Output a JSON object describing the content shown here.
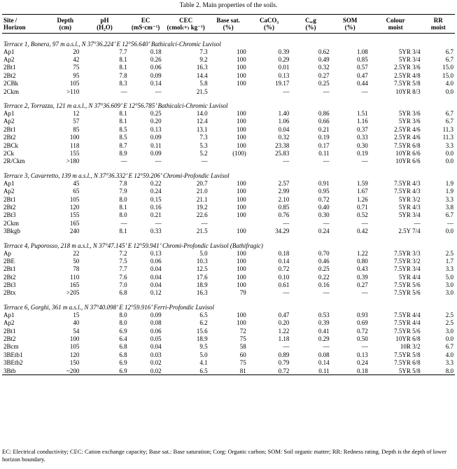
{
  "caption": "Table 2. Main properties of the soils.",
  "headers": {
    "row1": [
      "Site /",
      "Depth",
      "pH",
      "EC",
      "CEC",
      "Base sat.",
      "CaCO₃",
      "Cₒᵣg",
      "SOM",
      "Colour",
      "RR"
    ],
    "row2": [
      "Horizon",
      "(cm)",
      "(H₂O)",
      "(mS·cm⁻¹)",
      "(cmol₍+₎ kg⁻¹)",
      "(%)",
      "(%)",
      "(%)",
      "(%)",
      "moist",
      "moist"
    ]
  },
  "sections": [
    {
      "title": "Terrace 1, Bonera, 97 m a.s.l., N 37°36.224’ E 12°56.640’ Bathicalci-Chromic Luvisol",
      "rows": [
        [
          "Ap1",
          "20",
          "7.7",
          "0.18",
          "7.3",
          "100",
          "0.39",
          "0.62",
          "1.08",
          "5YR 3/4",
          "6.7"
        ],
        [
          "Ap2",
          "42",
          "8.1",
          "0.26",
          "9.2",
          "100",
          "0.29",
          "0.49",
          "0.85",
          "5YR 3/4",
          "6.7"
        ],
        [
          "2Bt1",
          "75",
          "8.1",
          "0.06",
          "16.3",
          "100",
          "0.01",
          "0.32",
          "0.57",
          "2.5YR 3/6",
          "15.0"
        ],
        [
          "2Bt2",
          "95",
          "7.8",
          "0.09",
          "14.4",
          "100",
          "0.13",
          "0.27",
          "0.47",
          "2.5YR 4/8",
          "15.0"
        ],
        [
          "2CBk",
          "105",
          "8.3",
          "0.14",
          "5.8",
          "100",
          "19.17",
          "0.25",
          "0.44",
          "7.5YR 5/8",
          "4.0"
        ],
        [
          "2Ckm",
          ">110",
          "—",
          "—",
          "21.5",
          "",
          "—",
          "—",
          "—",
          "10YR 8/3",
          "0.0"
        ]
      ]
    },
    {
      "title": "Terrace 2, Torrazza, 121 m a.s.l., N 37°36.609’ E 12°56.785’ Bathicalci-Chromic Luvisol",
      "rows": [
        [
          "Ap1",
          "12",
          "8.1",
          "0.25",
          "14.0",
          "100",
          "1.40",
          "0.86",
          "1.51",
          "5YR 3/6",
          "6.7"
        ],
        [
          "Ap2",
          "57",
          "8.1",
          "0.20",
          "12.4",
          "100",
          "1.06",
          "0.66",
          "1.16",
          "5YR 3/6",
          "6.7"
        ],
        [
          "2Bt1",
          "85",
          "8.5",
          "0.13",
          "13.1",
          "100",
          "0.04",
          "0.21",
          "0.37",
          "2.5YR 4/6",
          "11.3"
        ],
        [
          "2Bt2",
          "100",
          "8.5",
          "0.09",
          "7.3",
          "100",
          "0.32",
          "0.19",
          "0.33",
          "2.5YR 4/6",
          "11.3"
        ],
        [
          "2BCk",
          "118",
          "8.7",
          "0.11",
          "5.3",
          "100",
          "23.38",
          "0.17",
          "0.30",
          "7.5YR 6/8",
          "3.3"
        ],
        [
          "2Ck",
          "155",
          "8.9",
          "0.09",
          "5.2",
          "(100)",
          "25.83",
          "0.11",
          "0.19",
          "10YR 6/6",
          "0.0"
        ],
        [
          "2R/Ckm",
          ">180",
          "—",
          "—",
          "—",
          "",
          "—",
          "—",
          "—",
          "10YR 6/6",
          "0.0"
        ]
      ]
    },
    {
      "title": "Terrace 3, Cavarretto, 139 m a.s.l., N 37°36.332’ E 12°59.206’ Chromi-Profondic Luvisol",
      "rows": [
        [
          "Ap1",
          "45",
          "7.8",
          "0.22",
          "20.7",
          "100",
          "2.57",
          "0.91",
          "1.59",
          "7.5YR 4/3",
          "1.9"
        ],
        [
          "Ap2",
          "65",
          "7.9",
          "0.24",
          "21.0",
          "100",
          "2.99",
          "0.95",
          "1.67",
          "7.5YR 4/3",
          "1.9"
        ],
        [
          "2Bt1",
          "105",
          "8.0",
          "0.15",
          "21.1",
          "100",
          "2.10",
          "0.72",
          "1.26",
          "5YR 3/2",
          "3.3"
        ],
        [
          "2Bt2",
          "120",
          "8.1",
          "0.16",
          "19.2",
          "100",
          "0.85",
          "0.40",
          "0.71",
          "5YR 4/3",
          "3.8"
        ],
        [
          "2Bt3",
          "155",
          "8.0",
          "0.21",
          "22.6",
          "100",
          "0.76",
          "0.30",
          "0.52",
          "5YR 3/4",
          "6.7"
        ],
        [
          "2Ckm",
          "165",
          "—",
          "—",
          "—",
          "",
          "—",
          "—",
          "—",
          "—",
          "—"
        ],
        [
          "3Bkgb",
          "240",
          "8.1",
          "0.33",
          "21.5",
          "100",
          "34.29",
          "0.24",
          "0.42",
          "2.5Y 7/4",
          "0.0"
        ]
      ]
    },
    {
      "title": "Terrace 4, Puporosso, 218 m a.s.l., N 37°47.145’ E 12°59.941’ Chromi-Profondic Luvisol (Bathifragic)",
      "rows": [
        [
          "Ap",
          "22",
          "7.2",
          "0.13",
          "5.0",
          "100",
          "0.18",
          "0.70",
          "1.22",
          "7.5YR 3/3",
          "2.5"
        ],
        [
          "2BE",
          "50",
          "7.5",
          "0.06",
          "10.3",
          "100",
          "0.14",
          "0.46",
          "0.80",
          "7.5YR 3/2",
          "1.7"
        ],
        [
          "2Bt1",
          "78",
          "7.7",
          "0.04",
          "12.5",
          "100",
          "0.72",
          "0.25",
          "0.43",
          "7.5YR 3/4",
          "3.3"
        ],
        [
          "2Bt2",
          "110",
          "7.6",
          "0.04",
          "17.6",
          "100",
          "0.10",
          "0.22",
          "0.39",
          "5YR 4/4",
          "5.0"
        ],
        [
          "2Bt3",
          "165",
          "7.0",
          "0.04",
          "18.9",
          "100",
          "0.61",
          "0.16",
          "0.27",
          "7.5YR 5/6",
          "3.0"
        ],
        [
          "2Btx",
          ">205",
          "6.8",
          "0.12",
          "16.3",
          "79",
          "—",
          "—",
          "—",
          "7.5YR 5/6",
          "3.0"
        ]
      ]
    },
    {
      "title": "Terrace 6, Gorghi, 361 m a.s.l., N 37°40.098’ E 12°59.916’ Ferri-Profondic Luvisol",
      "rows": [
        [
          "Ap1",
          "15",
          "8.0",
          "0.09",
          "6.5",
          "100",
          "0.47",
          "0.53",
          "0.93",
          "7.5YR 4/4",
          "2.5"
        ],
        [
          "Ap2",
          "40",
          "8.0",
          "0.08",
          "6.2",
          "100",
          "0.20",
          "0.39",
          "0.69",
          "7.5YR 4/4",
          "2.5"
        ],
        [
          "2Bt1",
          "54",
          "6.9",
          "0.06",
          "15.6",
          "72",
          "1.22",
          "0.41",
          "0.72",
          "7.5YR 5/6",
          "3.0"
        ],
        [
          "2Bt2",
          "100",
          "6.4",
          "0.05",
          "18.9",
          "75",
          "1.18",
          "0.29",
          "0.50",
          "10YR 6/8",
          "0.0"
        ],
        [
          "2Bcm",
          "105",
          "6.8",
          "0.04",
          "9.5",
          "58",
          "—",
          "—",
          "—",
          "10R 3/2",
          "6.7"
        ],
        [
          "3BEtb1",
          "120",
          "6.8",
          "0.03",
          "5.0",
          "60",
          "0.89",
          "0.08",
          "0.13",
          "7.5YR 5/8",
          "4.0"
        ],
        [
          "3BEtb2",
          "150",
          "6.9",
          "0.02",
          "4.1",
          "75",
          "0.79",
          "0.14",
          "0.24",
          "7.5YR 6/8",
          "3.3"
        ],
        [
          "3Btb",
          "~200",
          "6.9",
          "0.02",
          "6.5",
          "81",
          "0.72",
          "0.11",
          "0.18",
          "5YR 5/8",
          "8.0"
        ]
      ]
    }
  ],
  "footnote": "EC: Electrical conductivity; CEC: Cation exchange capacity; Base sat.: Base saturation; Corg: Organic carbon; SOM: Soil organic matter; RR: Redness rating. Depth is the depth of lower horizon boundary."
}
